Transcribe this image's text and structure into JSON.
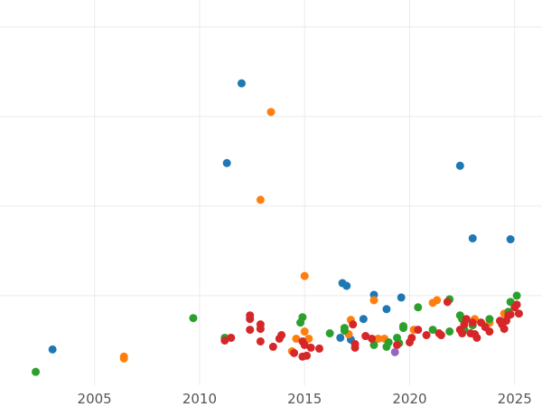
{
  "chart_data": {
    "type": "scatter",
    "title": "",
    "xlabel": "",
    "ylabel": "",
    "xlim": [
      2000.5,
      2026.3
    ],
    "ylim": [
      0,
      4.3
    ],
    "x_ticks": [
      2005,
      2010,
      2015,
      2020,
      2025
    ],
    "x_tick_labels": [
      "2005",
      "2010",
      "2015",
      "2020",
      "2025"
    ],
    "y_grid": [
      1,
      2,
      3,
      4
    ],
    "y_tick_labels_shown": false,
    "grid": true,
    "legend": "none",
    "series": [
      {
        "color": "#1f77b4",
        "points": [
          [
            2003.0,
            0.4
          ],
          [
            2012.0,
            3.37
          ],
          [
            2011.3,
            2.48
          ],
          [
            2016.8,
            1.14
          ],
          [
            2017.0,
            1.11
          ],
          [
            2018.3,
            1.01
          ],
          [
            2019.6,
            0.98
          ],
          [
            2018.9,
            0.85
          ],
          [
            2017.8,
            0.74
          ],
          [
            2016.7,
            0.53
          ],
          [
            2017.2,
            0.51
          ],
          [
            2022.4,
            2.45
          ],
          [
            2023.0,
            1.64
          ],
          [
            2024.8,
            1.63
          ]
        ]
      },
      {
        "color": "#ff7f0e",
        "points": [
          [
            2006.4,
            0.32
          ],
          [
            2006.4,
            0.3
          ],
          [
            2013.4,
            3.05
          ],
          [
            2012.9,
            2.07
          ],
          [
            2015.0,
            1.22
          ],
          [
            2014.6,
            0.52
          ],
          [
            2015.0,
            0.6
          ],
          [
            2015.2,
            0.52
          ],
          [
            2014.4,
            0.38
          ],
          [
            2017.2,
            0.73
          ],
          [
            2017.1,
            0.57
          ],
          [
            2018.3,
            0.95
          ],
          [
            2018.5,
            0.52
          ],
          [
            2018.8,
            0.52
          ],
          [
            2020.2,
            0.62
          ],
          [
            2021.1,
            0.92
          ],
          [
            2021.3,
            0.95
          ],
          [
            2023.1,
            0.74
          ],
          [
            2024.5,
            0.8
          ],
          [
            2023.8,
            0.7
          ]
        ]
      },
      {
        "color": "#2ca02c",
        "points": [
          [
            2002.2,
            0.15
          ],
          [
            2009.7,
            0.75
          ],
          [
            2011.2,
            0.53
          ],
          [
            2014.9,
            0.76
          ],
          [
            2014.8,
            0.7
          ],
          [
            2016.2,
            0.58
          ],
          [
            2016.9,
            0.64
          ],
          [
            2016.9,
            0.61
          ],
          [
            2018.3,
            0.45
          ],
          [
            2019.0,
            0.48
          ],
          [
            2018.9,
            0.43
          ],
          [
            2019.5,
            0.47
          ],
          [
            2019.4,
            0.53
          ],
          [
            2019.7,
            0.66
          ],
          [
            2019.7,
            0.64
          ],
          [
            2020.4,
            0.87
          ],
          [
            2021.1,
            0.62
          ],
          [
            2021.9,
            0.96
          ],
          [
            2021.9,
            0.6
          ],
          [
            2022.4,
            0.78
          ],
          [
            2022.6,
            0.62
          ],
          [
            2023.0,
            0.67
          ],
          [
            2023.8,
            0.74
          ],
          [
            2024.8,
            0.93
          ],
          [
            2025.1,
            1.0
          ],
          [
            2024.7,
            0.82
          ],
          [
            2022.5,
            0.74
          ]
        ]
      },
      {
        "color": "#d62728",
        "points": [
          [
            2011.2,
            0.5
          ],
          [
            2011.5,
            0.53
          ],
          [
            2012.4,
            0.74
          ],
          [
            2012.4,
            0.78
          ],
          [
            2012.4,
            0.62
          ],
          [
            2012.9,
            0.68
          ],
          [
            2012.9,
            0.63
          ],
          [
            2012.9,
            0.49
          ],
          [
            2013.5,
            0.43
          ],
          [
            2013.8,
            0.52
          ],
          [
            2013.9,
            0.56
          ],
          [
            2014.5,
            0.36
          ],
          [
            2014.9,
            0.49
          ],
          [
            2014.9,
            0.32
          ],
          [
            2015.0,
            0.45
          ],
          [
            2015.1,
            0.33
          ],
          [
            2015.3,
            0.42
          ],
          [
            2015.7,
            0.41
          ],
          [
            2017.3,
            0.68
          ],
          [
            2017.4,
            0.42
          ],
          [
            2017.4,
            0.46
          ],
          [
            2017.9,
            0.55
          ],
          [
            2018.2,
            0.52
          ],
          [
            2019.4,
            0.45
          ],
          [
            2020.0,
            0.48
          ],
          [
            2020.1,
            0.53
          ],
          [
            2020.4,
            0.62
          ],
          [
            2020.8,
            0.56
          ],
          [
            2021.4,
            0.58
          ],
          [
            2021.5,
            0.56
          ],
          [
            2021.8,
            0.93
          ],
          [
            2022.4,
            0.62
          ],
          [
            2022.5,
            0.58
          ],
          [
            2022.6,
            0.68
          ],
          [
            2022.7,
            0.74
          ],
          [
            2022.9,
            0.58
          ],
          [
            2023.0,
            0.7
          ],
          [
            2023.1,
            0.57
          ],
          [
            2023.2,
            0.53
          ],
          [
            2023.4,
            0.7
          ],
          [
            2023.6,
            0.65
          ],
          [
            2023.8,
            0.6
          ],
          [
            2024.3,
            0.72
          ],
          [
            2024.4,
            0.68
          ],
          [
            2024.5,
            0.63
          ],
          [
            2024.6,
            0.72
          ],
          [
            2024.7,
            0.78
          ],
          [
            2024.8,
            0.79
          ],
          [
            2025.0,
            0.87
          ],
          [
            2025.1,
            0.9
          ],
          [
            2025.2,
            0.8
          ]
        ]
      },
      {
        "color": "#9467bd",
        "points": [
          [
            2019.3,
            0.37
          ]
        ]
      }
    ]
  }
}
